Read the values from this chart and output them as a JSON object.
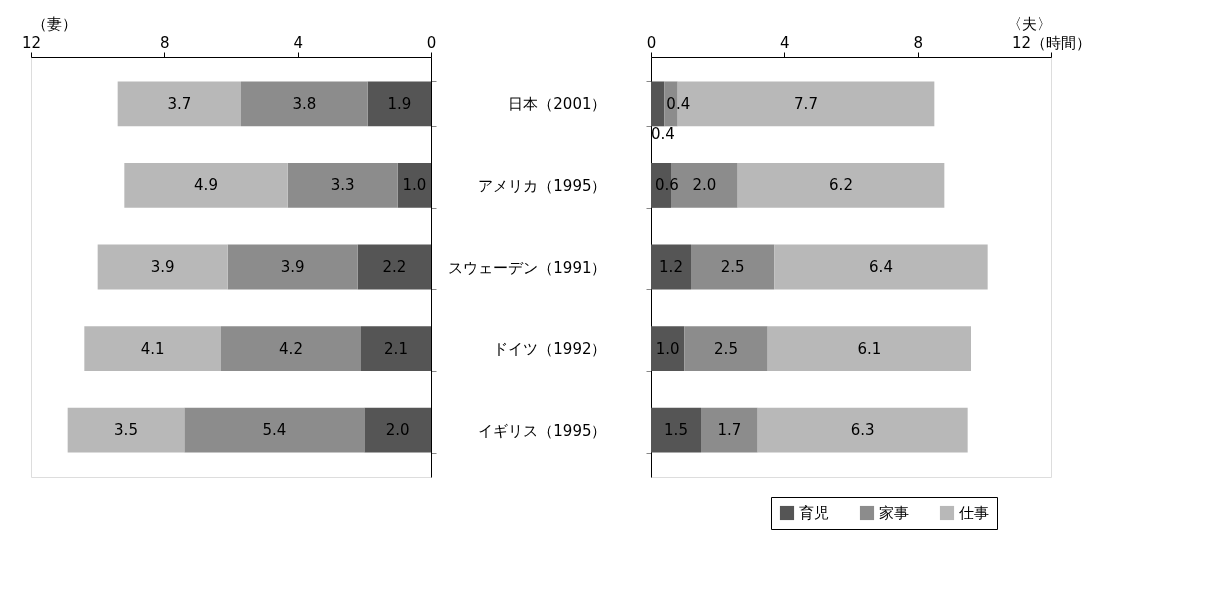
{
  "chart_data": [
    {
      "type": "bar",
      "orientation": "horizontal",
      "stacked": true,
      "xlabel": "（妻）",
      "categories": [
        null,
        null,
        null,
        null,
        null
      ],
      "series": [
        {
          "color": "#555555",
          "values": [
            1.9,
            1.0,
            2.2,
            2.1,
            2.0
          ],
          "value_labels": [
            "1.9",
            "1.0",
            "2.2",
            "2.1",
            "2.0"
          ]
        },
        {
          "color": "#8c8c8c",
          "values": [
            3.8,
            3.3,
            3.9,
            4.2,
            5.4
          ],
          "value_labels": [
            "3.8",
            "3.3",
            "3.9",
            "4.2",
            "5.4"
          ]
        },
        {
          "color": "#b8b8b8",
          "values": [
            3.7,
            4.9,
            3.9,
            4.1,
            3.5
          ],
          "value_labels": [
            "3.7",
            "4.9",
            "3.9",
            "4.1",
            "3.5"
          ]
        }
      ],
      "xlim": [
        12,
        0
      ],
      "xticks": [
        12,
        8,
        4,
        0
      ],
      "tick_labels": "x"
    },
    {
      "type": "bar",
      "orientation": "horizontal",
      "stacked": true,
      "xlabel": "〈夫〉",
      "categories": [
        "日本（2001）",
        "アメリカ（1995）",
        "スウェーデン（1991）",
        "ドイツ（1992）",
        "イギリス（1995）"
      ],
      "series": [
        {
          "name": "育児",
          "color": "#555555",
          "values": [
            0.4,
            0.6,
            1.2,
            1.0,
            1.5
          ],
          "value_labels": [
            "0.4",
            "0.6",
            "1.2",
            "1.0",
            "1.5"
          ]
        },
        {
          "name": "家事",
          "color": "#8c8c8c",
          "values": [
            0.4,
            2.0,
            2.5,
            2.5,
            1.7
          ],
          "value_labels": [
            "0.4",
            "2.0",
            "2.5",
            "2.5",
            "1.7"
          ]
        },
        {
          "name": "仕事",
          "color": "#b8b8b8",
          "values": [
            7.7,
            6.2,
            6.4,
            6.1,
            6.3
          ],
          "value_labels": [
            "7.7",
            "6.2",
            "6.4",
            "6.1",
            "6.3"
          ]
        }
      ],
      "xlim": [
        0,
        12
      ],
      "xticks": [
        0,
        4,
        8,
        {
          "value": 12,
          "label": "12（時間）"
        }
      ],
      "legend": "bottom right"
    }
  ]
}
